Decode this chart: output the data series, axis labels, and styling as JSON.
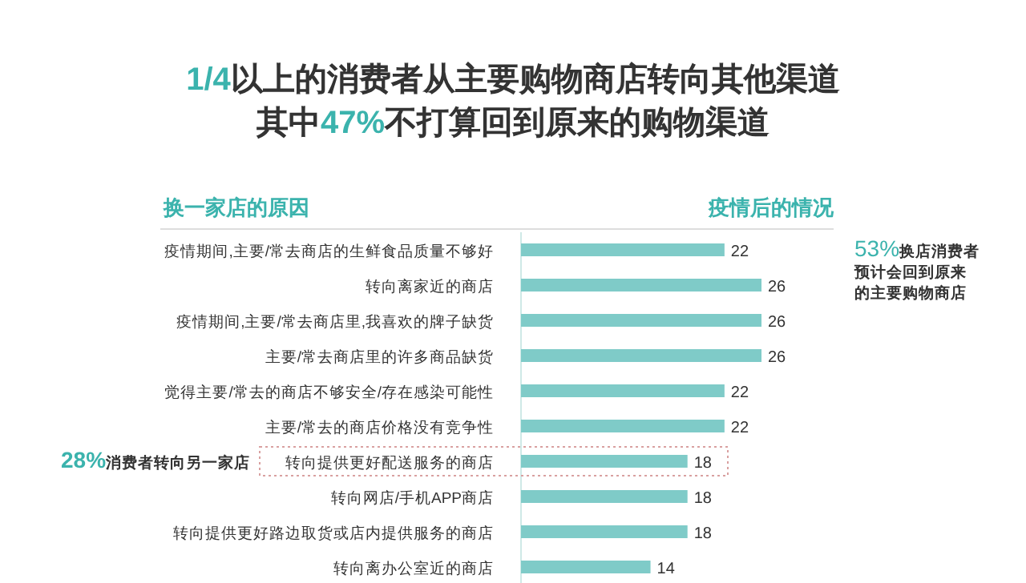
{
  "chart_data": {
    "type": "bar",
    "orientation": "horizontal",
    "title": "1/4以上的消费者从主要购物商店转向其他渠道",
    "subtitle": "其中47%不打算回到原来的购物渠道",
    "ylabel": "换一家店的原因",
    "xlabel": "疫情后的情况",
    "categories": [
      "疫情期间,主要/常去商店的生鲜食品质量不够好",
      "转向离家近的商店",
      "疫情期间,主要/常去商店里,我喜欢的牌子缺货",
      "主要/常去商店里的许多商品缺货",
      "觉得主要/常去的商店不够安全/存在感染可能性",
      "主要/常去的商店价格没有竞争性",
      "转向提供更好配送服务的商店",
      "转向网店/手机APP商店",
      "转向提供更好路边取货或店内提供服务的商店",
      "转向离办公室近的商店"
    ],
    "values": [
      22,
      26,
      26,
      26,
      22,
      22,
      18,
      18,
      18,
      14
    ],
    "color": "#7fcbc8",
    "data_labels": true,
    "annotations": [
      "28%消费者转向另一家店",
      "53%换店消费者预计会回到原来的主要购物商店"
    ]
  }
}
